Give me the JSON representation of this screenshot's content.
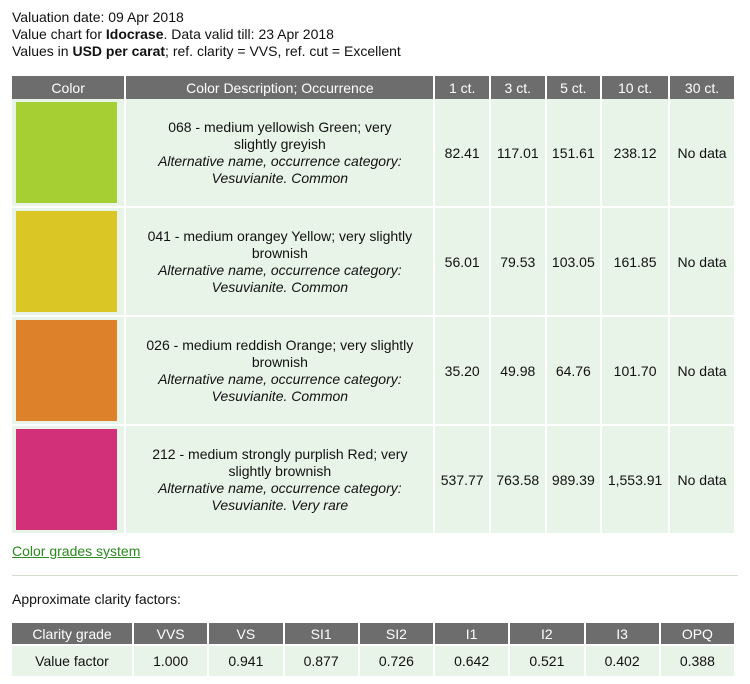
{
  "header": {
    "valuation_label": "Valuation date: ",
    "valuation_date": "09 Apr 2018",
    "chart_prefix": "Value chart for ",
    "gem": "Idocrase",
    "valid_label": ". Data valid till: ",
    "valid_date": "23 Apr 2018",
    "values_prefix": "Values in ",
    "currency_unit": "USD per carat",
    "values_suffix": "; ref. clarity = VVS, ref. cut = Excellent"
  },
  "price_table": {
    "columns": [
      "Color",
      "Color Description; Occurrence",
      "1 ct.",
      "3 ct.",
      "5 ct.",
      "10 ct.",
      "30 ct."
    ],
    "rows": [
      {
        "swatch": "#a6cf34",
        "description": "068 - medium yellowish Green; very slightly greyish",
        "alt_name": "Alternative name, occurrence category: Vesuvianite. Common",
        "values": [
          "82.41",
          "117.01",
          "151.61",
          "238.12",
          "No data"
        ]
      },
      {
        "swatch": "#dac624",
        "description": "041 - medium orangey Yellow; very slightly brownish",
        "alt_name": "Alternative name, occurrence category: Vesuvianite. Common",
        "values": [
          "56.01",
          "79.53",
          "103.05",
          "161.85",
          "No data"
        ]
      },
      {
        "swatch": "#dd812a",
        "description": "026 - medium reddish Orange; very slightly brownish",
        "alt_name": "Alternative name, occurrence category: Vesuvianite. Common",
        "values": [
          "35.20",
          "49.98",
          "64.76",
          "101.70",
          "No data"
        ]
      },
      {
        "swatch": "#d2317a",
        "description": "212 - medium strongly purplish Red; very slightly brownish",
        "alt_name": "Alternative name, occurrence category: Vesuvianite. Very rare",
        "values": [
          "537.77",
          "763.58",
          "989.39",
          "1,553.91",
          "No data"
        ]
      }
    ]
  },
  "links": {
    "color_grades": "Color grades system"
  },
  "clarity": {
    "title": "Approximate clarity factors:",
    "header_label": "Clarity grade",
    "row_label": "Value factor",
    "grades": [
      "VVS",
      "VS",
      "SI1",
      "SI2",
      "I1",
      "I2",
      "I3",
      "OPQ"
    ],
    "factors": [
      "1.000",
      "0.941",
      "0.877",
      "0.726",
      "0.642",
      "0.521",
      "0.402",
      "0.388"
    ]
  },
  "colors": {
    "header_bg": "#6d6d6d",
    "cell_bg": "#e9f4e8",
    "link": "#2a8a1e"
  }
}
